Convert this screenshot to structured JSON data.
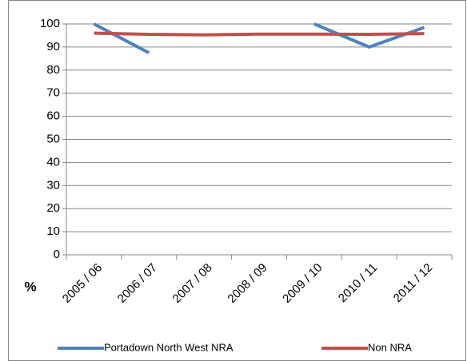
{
  "chart_data": {
    "type": "line",
    "y_label": "%",
    "categories": [
      "2005 / 06",
      "2006 / 07",
      "2007 / 08",
      "2008 / 09",
      "2009 / 10",
      "2010 / 11",
      "2011 / 12"
    ],
    "series": [
      {
        "name": "Portadown North West NRA",
        "color": "#4f81bd",
        "values": [
          100,
          87.5,
          null,
          null,
          100,
          90,
          98.5
        ]
      },
      {
        "name": "Non NRA",
        "color": "#c0504d",
        "values": [
          96,
          95.5,
          95.3,
          95.6,
          95.6,
          95.5,
          95.8
        ]
      }
    ],
    "ylim": [
      0,
      100
    ],
    "yticks": [
      0,
      10,
      20,
      30,
      40,
      50,
      60,
      70,
      80,
      90,
      100
    ],
    "grid": true,
    "legend": "bottom"
  }
}
